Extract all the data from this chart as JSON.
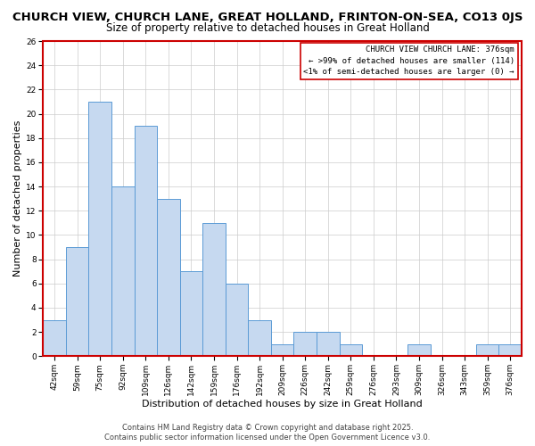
{
  "title": "CHURCH VIEW, CHURCH LANE, GREAT HOLLAND, FRINTON-ON-SEA, CO13 0JS",
  "subtitle": "Size of property relative to detached houses in Great Holland",
  "xlabel": "Distribution of detached houses by size in Great Holland",
  "ylabel": "Number of detached properties",
  "bar_color": "#c6d9f0",
  "bar_edge_color": "#5b9bd5",
  "categories": [
    "42sqm",
    "59sqm",
    "75sqm",
    "92sqm",
    "109sqm",
    "126sqm",
    "142sqm",
    "159sqm",
    "176sqm",
    "192sqm",
    "209sqm",
    "226sqm",
    "242sqm",
    "259sqm",
    "276sqm",
    "293sqm",
    "309sqm",
    "326sqm",
    "343sqm",
    "359sqm",
    "376sqm"
  ],
  "values": [
    3,
    9,
    21,
    14,
    19,
    13,
    7,
    11,
    6,
    3,
    1,
    2,
    2,
    1,
    0,
    0,
    1,
    0,
    0,
    1,
    1
  ],
  "ylim": [
    0,
    26
  ],
  "yticks": [
    0,
    2,
    4,
    6,
    8,
    10,
    12,
    14,
    16,
    18,
    20,
    22,
    24,
    26
  ],
  "highlight_index": 20,
  "annotation_line1": "CHURCH VIEW CHURCH LANE: 376sqm",
  "annotation_line2": "← >99% of detached houses are smaller (114)",
  "annotation_line3": "<1% of semi-detached houses are larger (0) →",
  "annotation_box_color": "#ffffff",
  "annotation_box_edge_color": "#cc0000",
  "footer1": "Contains HM Land Registry data © Crown copyright and database right 2025.",
  "footer2": "Contains public sector information licensed under the Open Government Licence v3.0.",
  "background_color": "#ffffff",
  "grid_color": "#cccccc",
  "title_fontsize": 9.5,
  "subtitle_fontsize": 8.5,
  "axis_label_fontsize": 8,
  "tick_fontsize": 6.5,
  "annotation_fontsize": 6.5,
  "footer_fontsize": 6
}
